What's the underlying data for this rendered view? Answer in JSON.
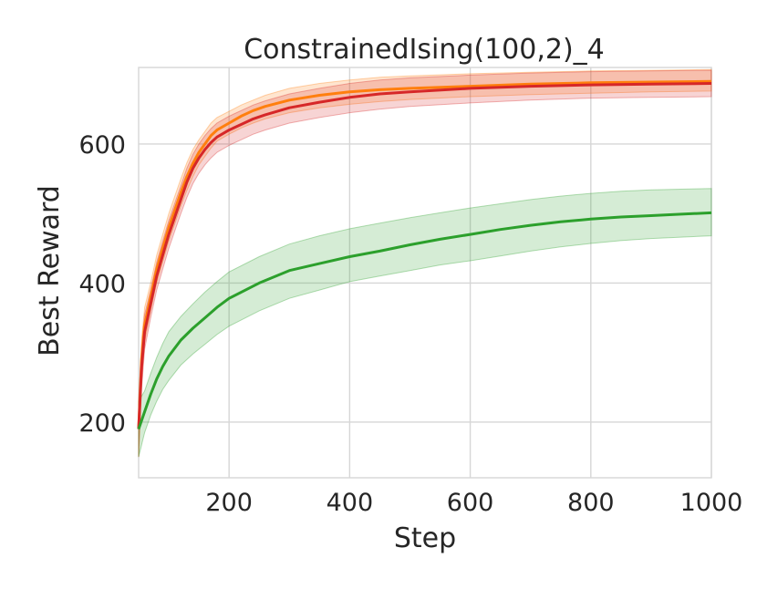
{
  "chart_data": {
    "type": "line",
    "title": "ConstrainedIsing(100,2)_4",
    "xlabel": "Step",
    "ylabel": "Best Reward",
    "xlim": [
      50,
      1000
    ],
    "ylim": [
      120,
      710
    ],
    "xticks": [
      200,
      400,
      600,
      800,
      1000
    ],
    "yticks": [
      200,
      400,
      600
    ],
    "grid": true,
    "legend": "none",
    "series": [
      {
        "color": "#ff7f0e",
        "x": [
          50,
          55,
          60,
          70,
          80,
          90,
          100,
          110,
          120,
          130,
          140,
          150,
          160,
          170,
          180,
          200,
          220,
          240,
          260,
          300,
          350,
          400,
          450,
          500,
          600,
          700,
          800,
          900,
          1000
        ],
        "y": [
          190,
          290,
          340,
          380,
          420,
          450,
          480,
          505,
          530,
          553,
          572,
          588,
          600,
          612,
          620,
          630,
          640,
          648,
          654,
          663,
          670,
          675,
          678,
          680,
          683,
          686,
          688,
          689,
          690
        ],
        "lower": [
          150,
          260,
          315,
          360,
          400,
          430,
          460,
          485,
          510,
          533,
          553,
          570,
          582,
          594,
          604,
          614,
          623,
          630,
          636,
          645,
          652,
          657,
          661,
          664,
          668,
          671,
          673,
          675,
          676
        ],
        "upper": [
          230,
          320,
          365,
          400,
          440,
          470,
          500,
          525,
          550,
          573,
          592,
          606,
          618,
          630,
          638,
          647,
          656,
          663,
          670,
          680,
          687,
          692,
          696,
          698,
          701,
          703,
          705,
          706,
          707
        ]
      },
      {
        "color": "#d62728",
        "x": [
          50,
          55,
          60,
          70,
          80,
          90,
          100,
          110,
          120,
          130,
          140,
          150,
          160,
          170,
          180,
          200,
          220,
          240,
          260,
          300,
          350,
          400,
          450,
          500,
          600,
          700,
          800,
          900,
          1000
        ],
        "y": [
          190,
          280,
          330,
          370,
          410,
          440,
          470,
          495,
          520,
          545,
          565,
          580,
          592,
          602,
          610,
          620,
          628,
          636,
          642,
          652,
          660,
          667,
          672,
          675,
          680,
          683,
          685,
          686,
          687
        ],
        "lower": [
          150,
          250,
          305,
          350,
          390,
          420,
          450,
          475,
          500,
          523,
          543,
          558,
          570,
          580,
          588,
          598,
          606,
          614,
          620,
          630,
          638,
          645,
          650,
          654,
          659,
          663,
          666,
          667,
          668
        ],
        "upper": [
          230,
          310,
          355,
          390,
          430,
          460,
          490,
          515,
          540,
          565,
          585,
          600,
          612,
          622,
          630,
          640,
          648,
          656,
          662,
          672,
          680,
          687,
          692,
          695,
          699,
          702,
          704,
          705,
          706
        ]
      },
      {
        "color": "#2ca02c",
        "x": [
          50,
          60,
          70,
          80,
          90,
          100,
          120,
          140,
          160,
          180,
          200,
          250,
          300,
          350,
          400,
          450,
          500,
          550,
          600,
          650,
          700,
          750,
          800,
          850,
          900,
          950,
          1000
        ],
        "y": [
          190,
          215,
          240,
          262,
          280,
          295,
          318,
          335,
          350,
          365,
          378,
          400,
          418,
          428,
          438,
          446,
          455,
          463,
          470,
          477,
          483,
          488,
          492,
          495,
          497,
          499,
          501
        ],
        "lower": [
          150,
          185,
          210,
          230,
          247,
          260,
          282,
          298,
          312,
          326,
          338,
          360,
          378,
          390,
          402,
          410,
          418,
          426,
          432,
          439,
          446,
          452,
          457,
          461,
          464,
          466,
          468
        ],
        "upper": [
          230,
          245,
          270,
          293,
          313,
          330,
          352,
          370,
          387,
          402,
          416,
          438,
          456,
          468,
          478,
          486,
          494,
          501,
          508,
          514,
          520,
          525,
          529,
          532,
          534,
          535,
          536
        ]
      }
    ]
  }
}
